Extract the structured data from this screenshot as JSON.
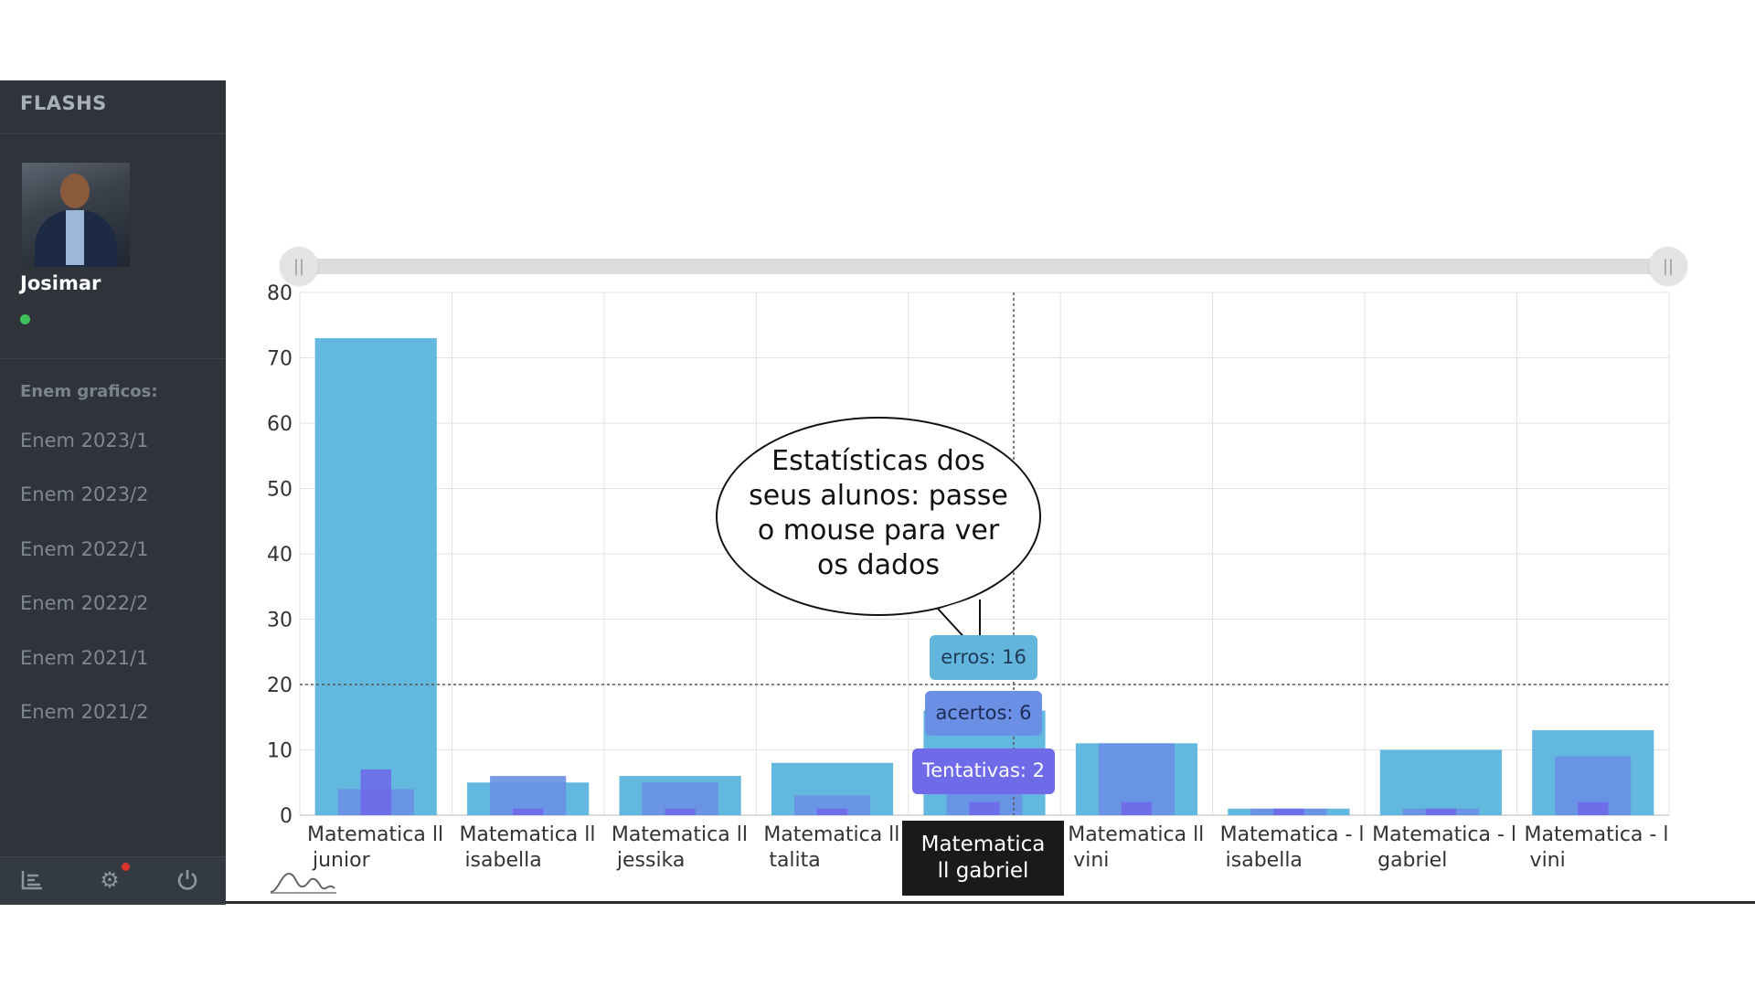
{
  "sidebar": {
    "brand": "FLASHS",
    "user": {
      "name": "Josimar",
      "status": "online"
    },
    "section_label": "Enem graficos:",
    "items": [
      {
        "label": "Enem 2023/1"
      },
      {
        "label": "Enem 2023/2"
      },
      {
        "label": "Enem 2022/1"
      },
      {
        "label": "Enem 2022/2"
      },
      {
        "label": "Enem 2021/1"
      },
      {
        "label": "Enem 2021/2"
      }
    ],
    "footer_icons": [
      "chart-list-icon",
      "gear-icon",
      "power-icon"
    ]
  },
  "callout": {
    "text": "Estatísticas dos seus alunos: passe o mouse para ver os dados"
  },
  "tooltip": {
    "erros": "erros: 16",
    "acertos": "acertos: 6",
    "tentativas": "Tentativas: 2",
    "category": "Matematica ll gabriel"
  },
  "colors": {
    "erros": "#5ab4dd",
    "acertos": "#6a8fe4",
    "tentativas": "#6e6ae8",
    "sidebar": "#2f343b"
  },
  "chart_data": {
    "type": "bar",
    "categories": [
      [
        "Matematica ll",
        "junior"
      ],
      [
        "Matematica ll",
        "isabella"
      ],
      [
        "Matematica ll",
        "jessika"
      ],
      [
        "Matematica ll",
        "talita"
      ],
      [
        "Matematica ll",
        "gabriel"
      ],
      [
        "Matematica ll",
        "vini"
      ],
      [
        "Matematica - l",
        "isabella"
      ],
      [
        "Matematica - l",
        "gabriel"
      ],
      [
        "Matematica - l",
        "vini"
      ]
    ],
    "series": [
      {
        "name": "erros",
        "values": [
          73,
          5,
          6,
          8,
          16,
          11,
          1,
          10,
          13
        ]
      },
      {
        "name": "acertos",
        "values": [
          4,
          6,
          5,
          3,
          6,
          11,
          1,
          1,
          9
        ]
      },
      {
        "name": "Tentativas",
        "values": [
          7,
          1,
          1,
          1,
          2,
          2,
          1,
          1,
          2
        ]
      }
    ],
    "ylim": [
      0,
      80
    ],
    "yticks": [
      "0",
      "10",
      "20",
      "30",
      "40",
      "50",
      "60",
      "70",
      "80"
    ],
    "grid": true,
    "hover_index": 4,
    "hover_y": 20,
    "zoom_range": [
      0,
      1
    ]
  }
}
